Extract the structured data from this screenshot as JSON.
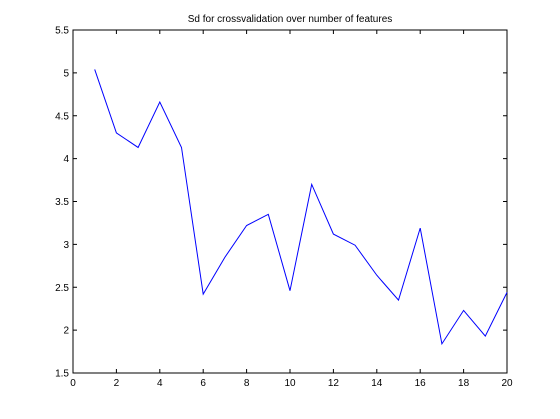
{
  "chart_data": {
    "type": "line",
    "title": "Sd for crossvalidation over number of features",
    "xlabel": "",
    "ylabel": "",
    "xlim": [
      0,
      20
    ],
    "ylim": [
      1.5,
      5.5
    ],
    "xticks": [
      0,
      2,
      4,
      6,
      8,
      10,
      12,
      14,
      16,
      18,
      20
    ],
    "yticks": [
      1.5,
      2,
      2.5,
      3,
      3.5,
      4,
      4.5,
      5,
      5.5
    ],
    "xtick_labels": [
      "0",
      "2",
      "4",
      "6",
      "8",
      "10",
      "12",
      "14",
      "16",
      "18",
      "20"
    ],
    "ytick_labels": [
      "1.5",
      "2",
      "2.5",
      "3",
      "3.5",
      "4",
      "4.5",
      "5",
      "5.5"
    ],
    "grid": false,
    "series": [
      {
        "color": "#0000ff",
        "x": [
          1,
          2,
          3,
          4,
          5,
          6,
          7,
          8,
          9,
          10,
          11,
          12,
          13,
          14,
          15,
          16,
          17,
          18,
          19,
          20
        ],
        "y": [
          5.04,
          4.3,
          4.13,
          4.66,
          4.13,
          2.42,
          2.85,
          3.22,
          3.35,
          2.46,
          3.7,
          3.12,
          2.99,
          2.64,
          2.35,
          3.19,
          1.84,
          2.23,
          1.93,
          2.44
        ]
      }
    ]
  }
}
